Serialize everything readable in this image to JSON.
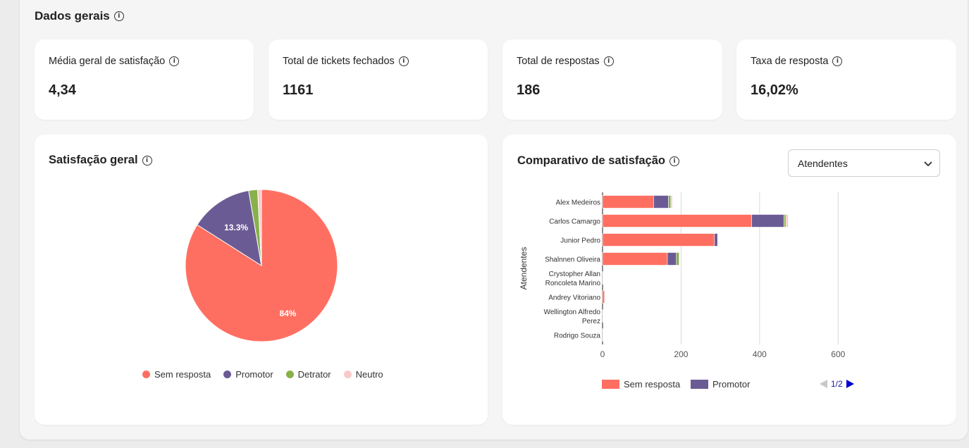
{
  "section": {
    "title": "Dados gerais"
  },
  "kpis": [
    {
      "label": "Média geral de satisfação",
      "value": "4,34"
    },
    {
      "label": "Total de tickets fechados",
      "value": "1161"
    },
    {
      "label": "Total de respostas",
      "value": "186"
    },
    {
      "label": "Taxa de resposta",
      "value": "16,02%"
    }
  ],
  "colors": {
    "sem_resposta": "#ff6f61",
    "promotor": "#6b5b95",
    "detrator": "#88b04b",
    "neutro": "#f7cac9"
  },
  "pie": {
    "title": "Satisfação geral",
    "legend": [
      "Sem resposta",
      "Promotor",
      "Detrator",
      "Neutro"
    ],
    "chart_data": {
      "type": "pie",
      "labels": [
        "Sem resposta",
        "Promotor",
        "Detrator",
        "Neutro"
      ],
      "values": [
        84,
        13.3,
        1.9,
        0.8
      ],
      "data_labels": [
        "84%",
        "13.3%",
        "",
        ""
      ]
    }
  },
  "bar": {
    "title": "Comparativo de satisfação",
    "select": {
      "value": "Atendentes"
    },
    "legend": [
      "Sem resposta",
      "Promotor"
    ],
    "pager": "1/2",
    "chart_data": {
      "type": "bar",
      "orientation": "horizontal",
      "stacked": true,
      "ylabel": "Atendentes",
      "categories": [
        [
          "Alex Medeiros"
        ],
        [
          "Carlos Camargo"
        ],
        [
          "Junior Pedro"
        ],
        [
          "Shalnnen Oliveira"
        ],
        [
          "Crystopher Allan",
          "Roncoleta Marino"
        ],
        [
          "Andrey Vitoriano"
        ],
        [
          "Wellington Alfredo",
          "Perez"
        ],
        [
          "Rodrigo Souza"
        ]
      ],
      "xticks": [
        0,
        200,
        400,
        600
      ],
      "xlim": [
        0,
        700
      ],
      "series": [
        {
          "name": "Sem resposta",
          "values": [
            130,
            380,
            285,
            165,
            0,
            5,
            0,
            0
          ]
        },
        {
          "name": "Promotor",
          "values": [
            38,
            82,
            8,
            23,
            1,
            0,
            1,
            1
          ]
        },
        {
          "values": [
            6,
            5,
            0,
            7,
            0,
            0,
            0,
            0
          ]
        },
        {
          "values": [
            4,
            6,
            0,
            0,
            0,
            0,
            0,
            0
          ]
        }
      ]
    }
  }
}
